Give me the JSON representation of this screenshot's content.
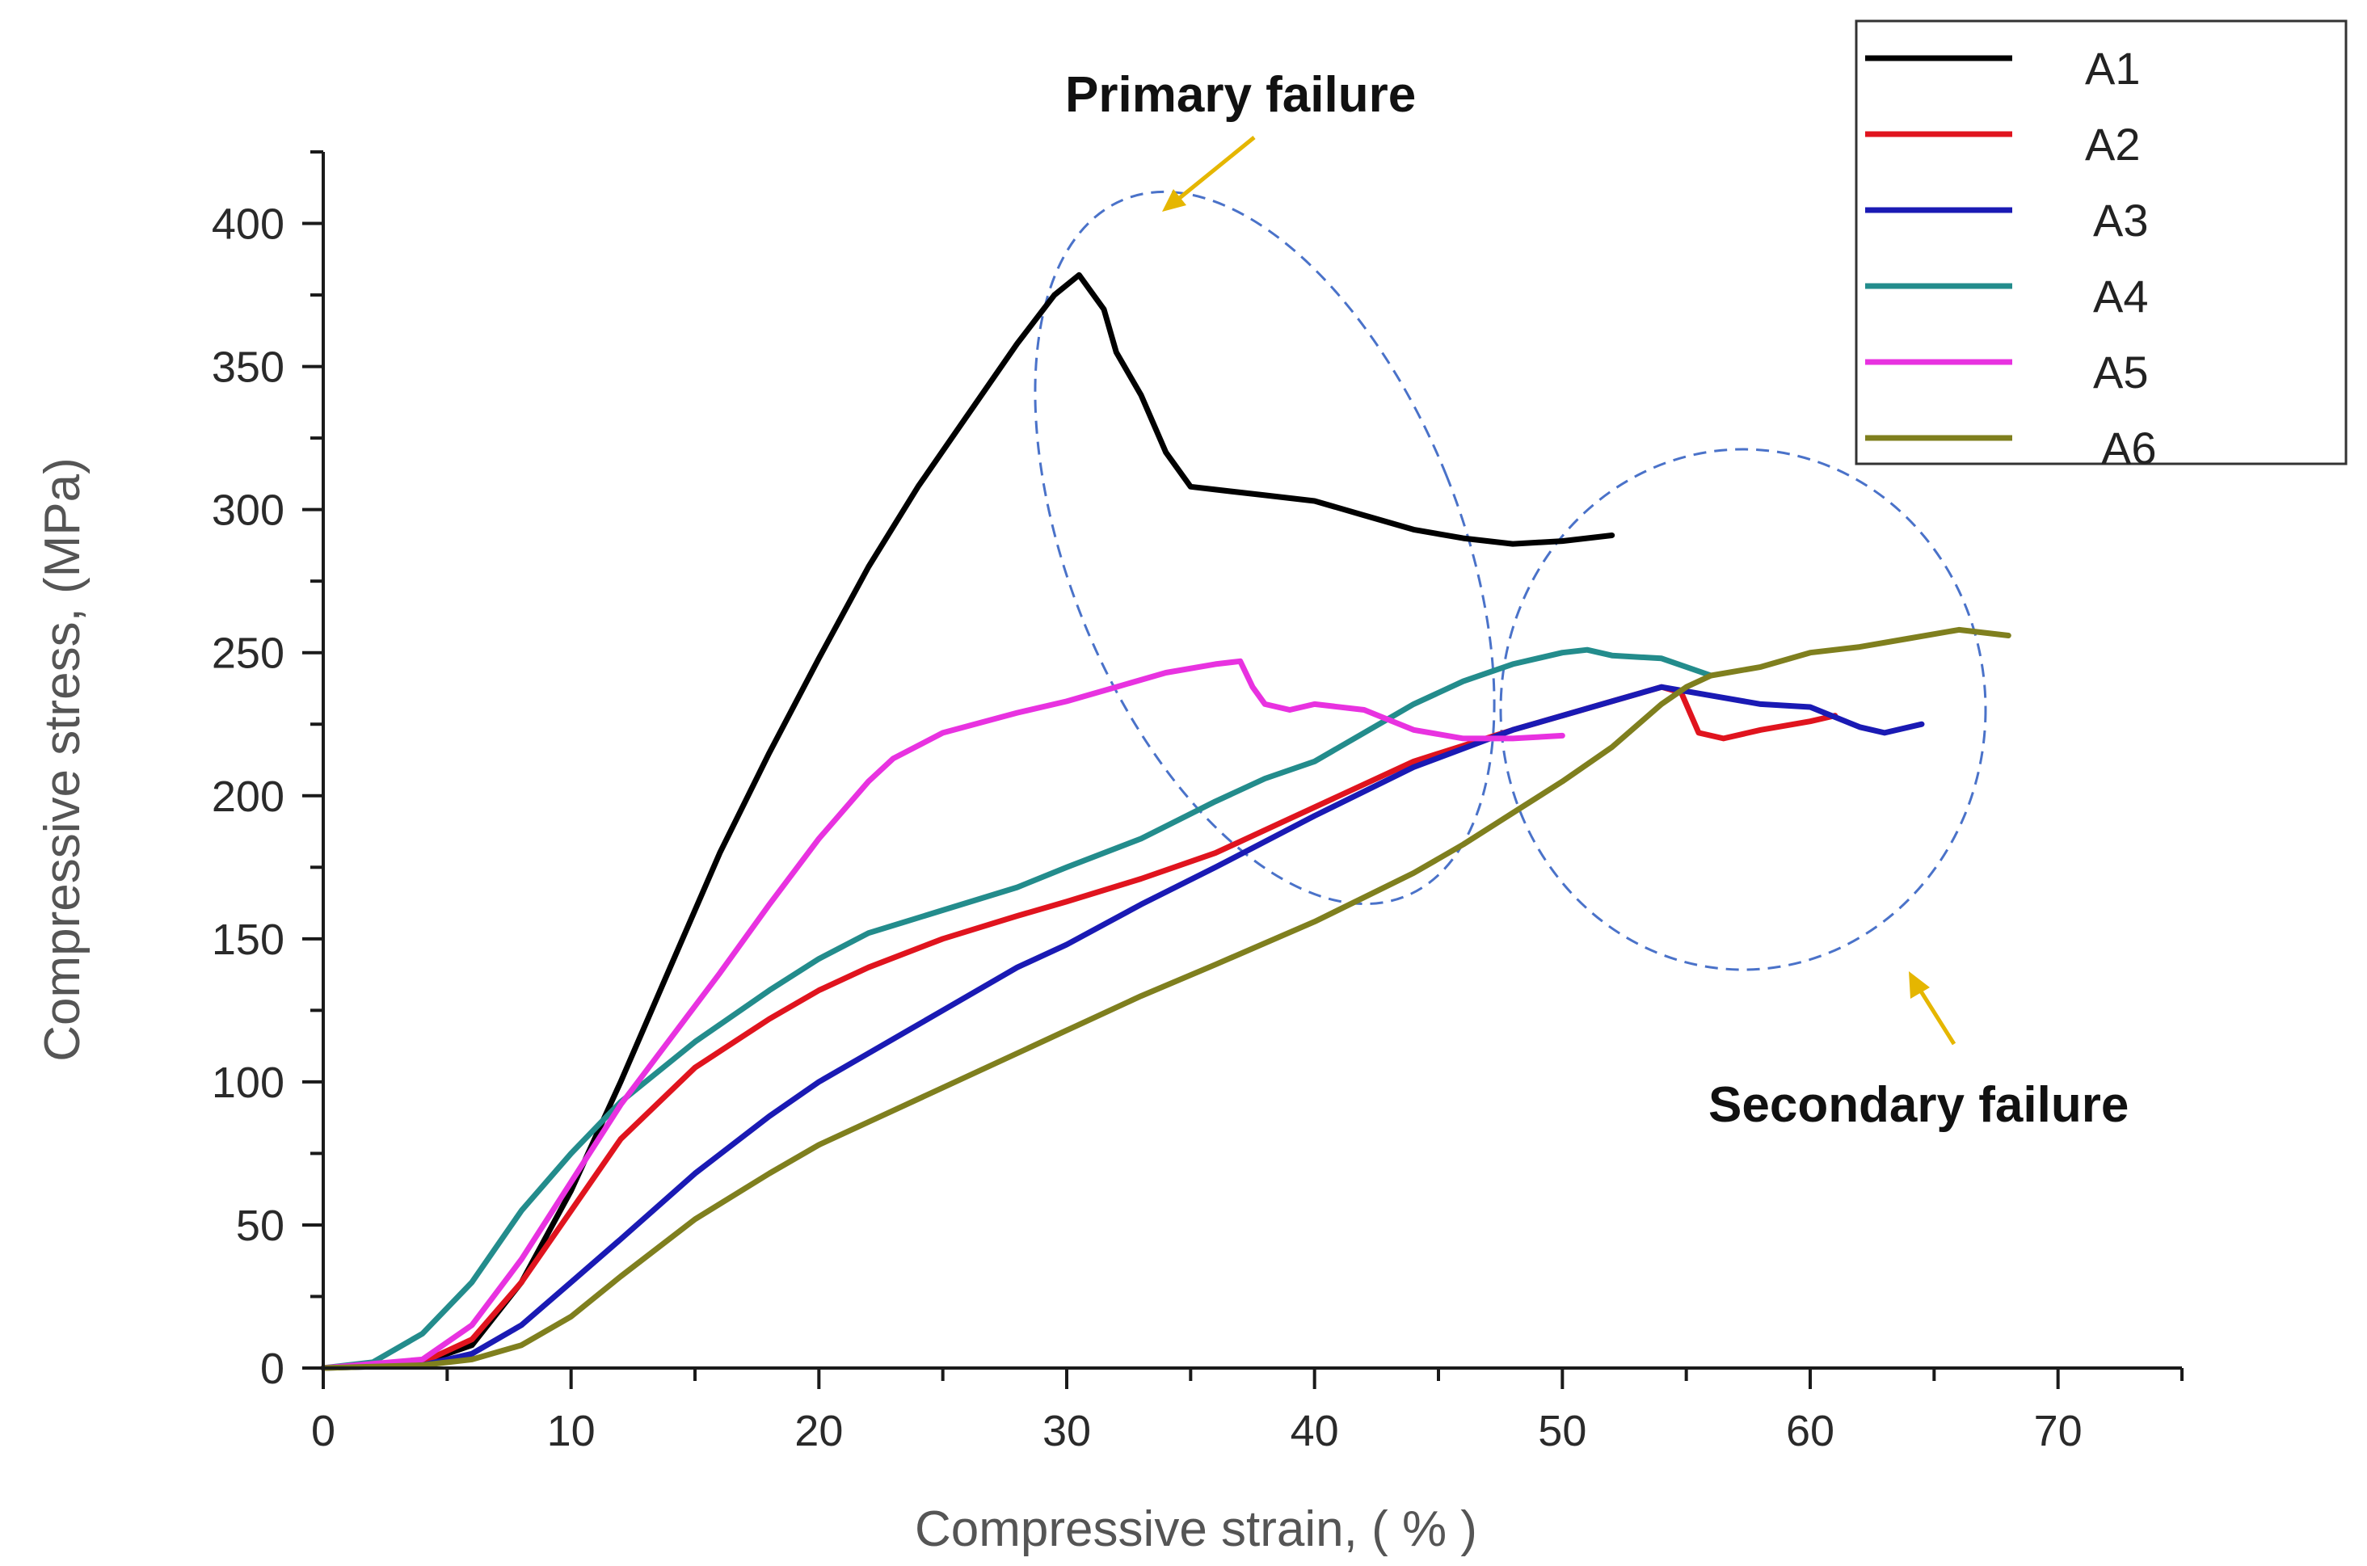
{
  "chart_data": {
    "type": "line",
    "title": "",
    "xlabel": "Compressive strain, ( % )",
    "ylabel": "Compressive stress, (MPa)",
    "xlim": [
      0,
      75
    ],
    "ylim": [
      0,
      425
    ],
    "x_ticks": [
      "0",
      "10",
      "20",
      "30",
      "40",
      "50",
      "60",
      "70"
    ],
    "y_ticks": [
      "0",
      "50",
      "100",
      "150",
      "200",
      "250",
      "300",
      "350",
      "400"
    ],
    "legend_position": "top-right",
    "series": [
      {
        "name": "A1",
        "color": "#000000",
        "x": [
          0,
          4,
          6,
          8,
          10,
          12,
          14,
          16,
          18,
          20,
          22,
          24,
          26,
          28,
          29.5,
          30.5,
          31.5,
          32,
          33,
          34,
          35,
          36,
          38,
          40,
          42,
          44,
          46,
          48,
          50,
          52
        ],
        "y": [
          0,
          2,
          8,
          30,
          62,
          100,
          140,
          180,
          215,
          248,
          280,
          308,
          333,
          358,
          375,
          382,
          370,
          355,
          340,
          320,
          308,
          307,
          305,
          303,
          298,
          293,
          290,
          288,
          289,
          291
        ]
      },
      {
        "name": "A2",
        "color": "#e0141e",
        "x": [
          0,
          4,
          6,
          8,
          10,
          12,
          15,
          18,
          20,
          22,
          25,
          28,
          30,
          33,
          36,
          40,
          44,
          48,
          50,
          52,
          54,
          54.8,
          55.5,
          56.5,
          58,
          60,
          61
        ],
        "y": [
          0,
          2,
          10,
          30,
          55,
          80,
          105,
          122,
          132,
          140,
          150,
          158,
          163,
          171,
          180,
          196,
          212,
          223,
          228,
          233,
          238,
          236,
          222,
          220,
          223,
          226,
          228
        ]
      },
      {
        "name": "A3",
        "color": "#1a1ab4",
        "x": [
          0,
          4,
          6,
          8,
          10,
          12,
          15,
          18,
          20,
          22,
          25,
          28,
          30,
          33,
          36,
          40,
          44,
          48,
          50,
          52,
          54,
          56,
          58,
          60,
          62,
          63,
          64.5
        ],
        "y": [
          0,
          1,
          5,
          15,
          30,
          45,
          68,
          88,
          100,
          110,
          125,
          140,
          148,
          162,
          175,
          193,
          210,
          223,
          228,
          233,
          238,
          235,
          232,
          231,
          224,
          222,
          225
        ]
      },
      {
        "name": "A4",
        "color": "#238c8c",
        "x": [
          0,
          2,
          4,
          6,
          8,
          10,
          12,
          15,
          18,
          20,
          22,
          25,
          28,
          30,
          33,
          36,
          38,
          40,
          42,
          44,
          46,
          48,
          50,
          51,
          52,
          54,
          56
        ],
        "y": [
          0,
          2,
          12,
          30,
          55,
          75,
          93,
          114,
          132,
          143,
          152,
          160,
          168,
          175,
          185,
          198,
          206,
          212,
          222,
          232,
          240,
          246,
          250,
          251,
          249,
          248,
          242
        ]
      },
      {
        "name": "A5",
        "color": "#e832e0",
        "x": [
          0,
          4,
          6,
          8,
          10,
          12,
          14,
          16,
          18,
          20,
          22,
          23,
          25,
          28,
          30,
          32,
          34,
          36,
          37,
          37.5,
          38,
          39,
          40,
          42,
          44,
          46,
          48,
          50
        ],
        "y": [
          0,
          3,
          15,
          38,
          65,
          92,
          115,
          138,
          162,
          185,
          205,
          213,
          222,
          229,
          233,
          238,
          243,
          246,
          247,
          238,
          232,
          230,
          232,
          230,
          223,
          220,
          220,
          221
        ]
      },
      {
        "name": "A6",
        "color": "#7f7f1e",
        "x": [
          0,
          4,
          6,
          8,
          10,
          12,
          15,
          18,
          20,
          22,
          25,
          28,
          30,
          33,
          36,
          40,
          44,
          46,
          48,
          50,
          52,
          54,
          55,
          56,
          58,
          60,
          62,
          64,
          66,
          68
        ],
        "y": [
          0,
          1,
          3,
          8,
          18,
          32,
          52,
          68,
          78,
          86,
          98,
          110,
          118,
          130,
          141,
          156,
          173,
          183,
          194,
          205,
          217,
          232,
          238,
          242,
          245,
          250,
          252,
          255,
          258,
          256
        ]
      }
    ],
    "annotations": [
      {
        "label": "Primary failure"
      },
      {
        "label": "Secondary failure"
      }
    ],
    "annotation_color": "#e5b600",
    "ellipse_color": "#4a72c9"
  }
}
